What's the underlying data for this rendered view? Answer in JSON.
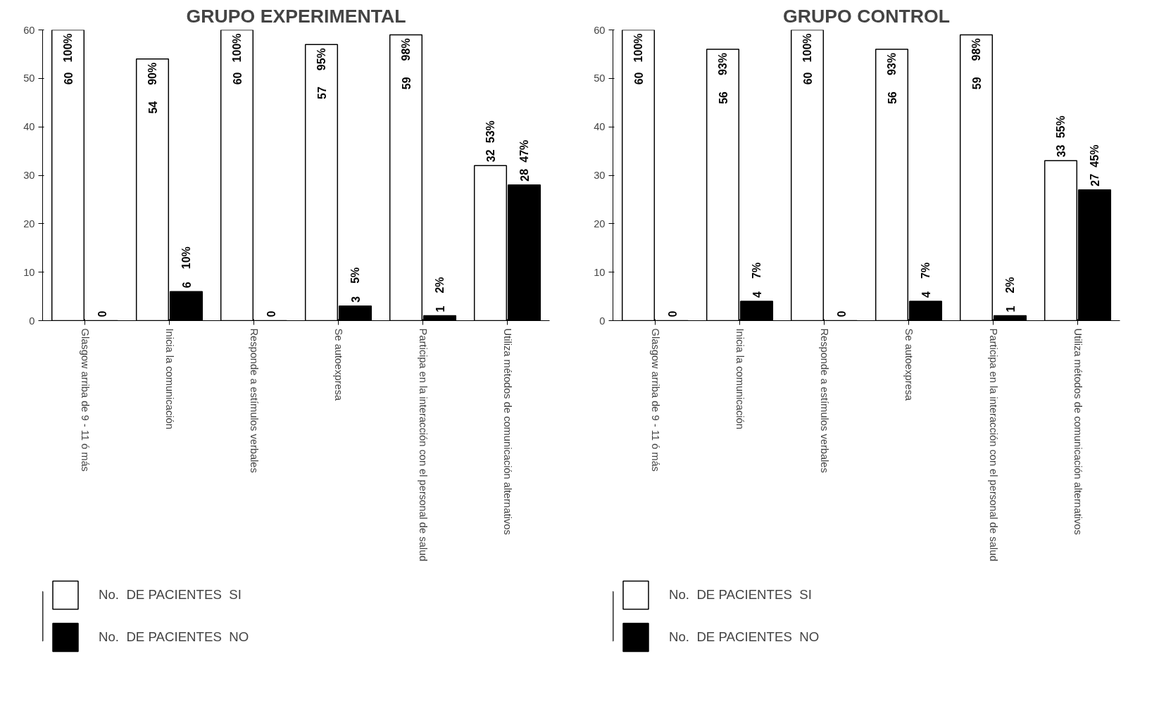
{
  "chart_data": [
    {
      "type": "bar",
      "title": "GRUPO EXPERIMENTAL",
      "categories": [
        "Glasgow  arriba de 9 - 11 ó más",
        "Inicia la comunicación",
        "Responde a estímulos verbales",
        "Se autoexpresa",
        "Participa en la interacción con el personal de salud",
        "Utiliza métodos de comunicación alternativos"
      ],
      "series": [
        {
          "name": "No.  DE PACIENTES  SI",
          "color": "#ffffff",
          "values": [
            60,
            54,
            60,
            57,
            59,
            32
          ]
        },
        {
          "name": "No.  DE PACIENTES  NO",
          "color": "#000000",
          "values": [
            0,
            6,
            0,
            3,
            1,
            28
          ]
        }
      ],
      "data_labels": true,
      "annotations": [
        {
          "text": "100%",
          "x": "Glasgow  arriba de 9 - 11 ó más",
          "y": 60
        },
        {
          "text": "90%",
          "x": "Inicia la comunicación",
          "y": 54
        },
        {
          "text": "10%",
          "x": "Inicia la comunicación",
          "y": 6
        },
        {
          "text": "100%",
          "x": "Responde a estímulos verbales",
          "y": 60
        },
        {
          "text": "95%",
          "x": "Se autoexpresa",
          "y": 57
        },
        {
          "text": "5%",
          "x": "Se autoexpresa",
          "y": 3
        },
        {
          "text": "98%",
          "x": "Participa en la interacción con el personal de salud",
          "y": 59
        },
        {
          "text": "2%",
          "x": "Participa en la interacción con el personal de salud",
          "y": 1
        },
        {
          "text": "53%",
          "x": "Utiliza métodos de comunicación alternativos",
          "y": 32
        },
        {
          "text": "47%",
          "x": "Utiliza métodos de comunicación alternativos",
          "y": 28
        }
      ],
      "ylim": [
        0,
        60
      ],
      "yticks": [
        0,
        10,
        20,
        30,
        40,
        50,
        60
      ],
      "grid": false,
      "legend": "bottom"
    },
    {
      "type": "bar",
      "title": "GRUPO CONTROL",
      "categories": [
        "Glasgow  arriba de 9 - 11 ó más",
        "Inicia la comunicación",
        "Responde a estímulos verbales",
        "Se autoexpresa",
        "Participa en la interacción con el personal de salud",
        "Utiliza métodos de comunicación alternativos"
      ],
      "series": [
        {
          "name": "No.  DE PACIENTES  SI",
          "color": "#ffffff",
          "values": [
            60,
            56,
            60,
            56,
            59,
            33
          ]
        },
        {
          "name": "No.  DE PACIENTES  NO",
          "color": "#000000",
          "values": [
            0,
            4,
            0,
            4,
            1,
            27
          ]
        }
      ],
      "data_labels": true,
      "annotations": [
        {
          "text": "100%",
          "x": "Glasgow  arriba de 9 - 11 ó más",
          "y": 60
        },
        {
          "text": "93%",
          "x": "Inicia la comunicación",
          "y": 56
        },
        {
          "text": "7%",
          "x": "Inicia la comunicación",
          "y": 4
        },
        {
          "text": "100%",
          "x": "Responde a estímulos verbales",
          "y": 60
        },
        {
          "text": "93%",
          "x": "Se autoexpresa",
          "y": 56
        },
        {
          "text": "7%",
          "x": "Se autoexpresa",
          "y": 4
        },
        {
          "text": "98%",
          "x": "Participa en la interacción con el personal de salud",
          "y": 59
        },
        {
          "text": "2%",
          "x": "Participa en la interacción con el personal de salud",
          "y": 1
        },
        {
          "text": "55%",
          "x": "Utiliza métodos de comunicación alternativos",
          "y": 33
        },
        {
          "text": "45%",
          "x": "Utiliza métodos de comunicación alternativos",
          "y": 27
        }
      ],
      "ylim": [
        0,
        60
      ],
      "yticks": [
        0,
        10,
        20,
        30,
        40,
        50,
        60
      ],
      "grid": false,
      "legend": "bottom"
    }
  ]
}
